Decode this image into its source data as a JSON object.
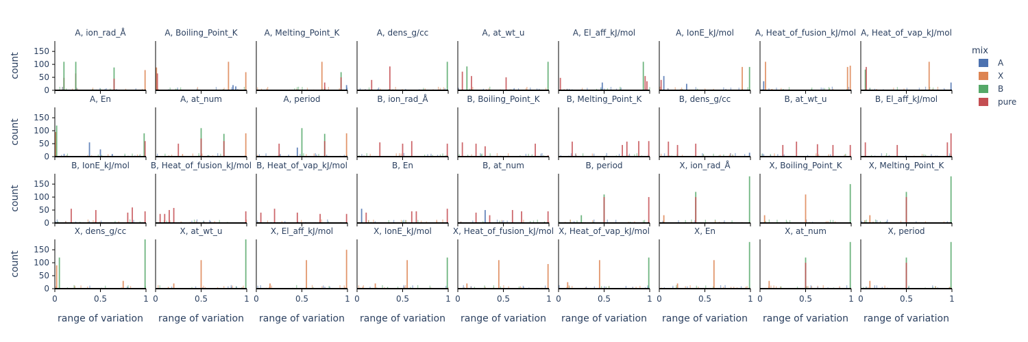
{
  "chart_data": {
    "type": "histogram",
    "layout": "facet grid, 4 rows x 9 columns, shared axes",
    "xlabel": "range of variation",
    "ylabel": "count",
    "xlim": [
      0,
      1
    ],
    "ylim": [
      0,
      190
    ],
    "xticks": [
      "0",
      "0.5",
      "1"
    ],
    "yticks": [
      "0",
      "50",
      "100",
      "150"
    ],
    "legend": {
      "title": "mix",
      "placement": "right",
      "entries": [
        {
          "name": "A",
          "color": "#4c72b0"
        },
        {
          "name": "X",
          "color": "#dd8452"
        },
        {
          "name": "B",
          "color": "#55a868"
        },
        {
          "name": "pure",
          "color": "#c44e52"
        }
      ]
    },
    "facets": [
      {
        "title": "A, ion_rad_Å",
        "spikes": [
          [
            0.1,
            48,
            "pure"
          ],
          [
            0.1,
            110,
            "B"
          ],
          [
            0.23,
            65,
            "pure"
          ],
          [
            0.23,
            110,
            "B"
          ],
          [
            0.65,
            88,
            "B"
          ],
          [
            0.65,
            45,
            "pure"
          ],
          [
            0.99,
            78,
            "X"
          ]
        ]
      },
      {
        "title": "A, Boiling_Point_K",
        "spikes": [
          [
            0.01,
            88,
            "X"
          ],
          [
            0.02,
            65,
            "pure"
          ],
          [
            0.8,
            110,
            "X"
          ],
          [
            0.85,
            20,
            "A"
          ],
          [
            0.88,
            15,
            "A"
          ],
          [
            0.99,
            70,
            "X"
          ]
        ]
      },
      {
        "title": "A, Melting_Point_K",
        "spikes": [
          [
            0.72,
            110,
            "X"
          ],
          [
            0.75,
            30,
            "pure"
          ],
          [
            0.93,
            70,
            "B"
          ],
          [
            0.93,
            50,
            "pure"
          ],
          [
            0.99,
            20,
            "A"
          ]
        ]
      },
      {
        "title": "A, dens_g/cc",
        "spikes": [
          [
            0.16,
            40,
            "pure"
          ],
          [
            0.36,
            92,
            "pure"
          ],
          [
            0.99,
            110,
            "B"
          ]
        ]
      },
      {
        "title": "A, at_wt_u",
        "spikes": [
          [
            0.05,
            72,
            "pure"
          ],
          [
            0.1,
            92,
            "B"
          ],
          [
            0.15,
            55,
            "pure"
          ],
          [
            0.53,
            50,
            "pure"
          ],
          [
            0.99,
            110,
            "B"
          ]
        ]
      },
      {
        "title": "A, El_aff_kJ/mol",
        "spikes": [
          [
            0.02,
            48,
            "pure"
          ],
          [
            0.48,
            30,
            "A"
          ],
          [
            0.93,
            110,
            "B"
          ],
          [
            0.95,
            55,
            "pure"
          ],
          [
            0.97,
            35,
            "pure"
          ]
        ]
      },
      {
        "title": "A, IonE_kJ/mol",
        "spikes": [
          [
            0.02,
            40,
            "pure"
          ],
          [
            0.05,
            55,
            "A"
          ],
          [
            0.3,
            25,
            "A"
          ],
          [
            0.91,
            90,
            "X"
          ],
          [
            0.99,
            90,
            "B"
          ]
        ]
      },
      {
        "title": "A, Heat_of_fusion_kJ/mol",
        "spikes": [
          [
            0.04,
            35,
            "A"
          ],
          [
            0.06,
            110,
            "X"
          ],
          [
            0.96,
            90,
            "X"
          ],
          [
            0.99,
            95,
            "X"
          ]
        ]
      },
      {
        "title": "A, Heat_of_vap_kJ/mol",
        "spikes": [
          [
            0.05,
            80,
            "B"
          ],
          [
            0.06,
            90,
            "pure"
          ],
          [
            0.75,
            110,
            "X"
          ],
          [
            0.99,
            30,
            "A"
          ]
        ]
      },
      {
        "title": "A, En",
        "spikes": [
          [
            0.01,
            95,
            "X"
          ],
          [
            0.02,
            120,
            "B"
          ],
          [
            0.38,
            55,
            "A"
          ],
          [
            0.5,
            28,
            "A"
          ],
          [
            0.63,
            10,
            "A"
          ],
          [
            0.98,
            90,
            "B"
          ],
          [
            0.99,
            60,
            "pure"
          ]
        ]
      },
      {
        "title": "A, at_num",
        "spikes": [
          [
            0.25,
            50,
            "pure"
          ],
          [
            0.5,
            110,
            "B"
          ],
          [
            0.5,
            70,
            "pure"
          ],
          [
            0.75,
            88,
            "B"
          ],
          [
            0.75,
            60,
            "pure"
          ],
          [
            0.99,
            90,
            "X"
          ]
        ]
      },
      {
        "title": "A, period",
        "spikes": [
          [
            0.25,
            50,
            "pure"
          ],
          [
            0.45,
            35,
            "A"
          ],
          [
            0.5,
            110,
            "B"
          ],
          [
            0.75,
            88,
            "B"
          ],
          [
            0.75,
            60,
            "pure"
          ],
          [
            0.99,
            90,
            "X"
          ]
        ]
      },
      {
        "title": "B, ion_rad_Å",
        "spikes": [
          [
            0.25,
            55,
            "pure"
          ],
          [
            0.5,
            50,
            "pure"
          ],
          [
            0.6,
            60,
            "pure"
          ],
          [
            0.99,
            50,
            "pure"
          ]
        ]
      },
      {
        "title": "B, Boiling_Point_K",
        "spikes": [
          [
            0.05,
            55,
            "pure"
          ],
          [
            0.2,
            50,
            "pure"
          ],
          [
            0.3,
            40,
            "pure"
          ],
          [
            0.85,
            50,
            "pure"
          ],
          [
            0.99,
            5,
            "pure"
          ]
        ]
      },
      {
        "title": "B, Melting_Point_K",
        "spikes": [
          [
            0.15,
            58,
            "pure"
          ],
          [
            0.7,
            45,
            "pure"
          ],
          [
            0.75,
            58,
            "pure"
          ],
          [
            0.88,
            60,
            "pure"
          ],
          [
            0.99,
            60,
            "pure"
          ]
        ]
      },
      {
        "title": "B, dens_g/cc",
        "spikes": [
          [
            0.1,
            58,
            "pure"
          ],
          [
            0.2,
            45,
            "pure"
          ],
          [
            0.4,
            50,
            "pure"
          ],
          [
            0.99,
            15,
            "A"
          ]
        ]
      },
      {
        "title": "B, at_wt_u",
        "spikes": [
          [
            0.25,
            45,
            "pure"
          ],
          [
            0.4,
            58,
            "pure"
          ],
          [
            0.63,
            48,
            "pure"
          ],
          [
            0.8,
            45,
            "pure"
          ],
          [
            0.99,
            45,
            "pure"
          ]
        ]
      },
      {
        "title": "B, El_aff_kJ/mol",
        "spikes": [
          [
            0.05,
            55,
            "pure"
          ],
          [
            0.4,
            45,
            "pure"
          ],
          [
            0.95,
            55,
            "pure"
          ],
          [
            0.99,
            90,
            "pure"
          ]
        ]
      },
      {
        "title": "B, IonE_kJ/mol",
        "spikes": [
          [
            0.18,
            55,
            "pure"
          ],
          [
            0.45,
            50,
            "pure"
          ],
          [
            0.8,
            40,
            "pure"
          ],
          [
            0.85,
            60,
            "pure"
          ],
          [
            0.99,
            45,
            "pure"
          ]
        ]
      },
      {
        "title": "B, Heat_of_fusion_kJ/mol",
        "spikes": [
          [
            0.05,
            35,
            "pure"
          ],
          [
            0.1,
            35,
            "pure"
          ],
          [
            0.15,
            50,
            "pure"
          ],
          [
            0.2,
            58,
            "pure"
          ],
          [
            0.99,
            45,
            "pure"
          ]
        ]
      },
      {
        "title": "B, Heat_of_vap_kJ/mol",
        "spikes": [
          [
            0.05,
            40,
            "pure"
          ],
          [
            0.2,
            55,
            "pure"
          ],
          [
            0.45,
            40,
            "pure"
          ],
          [
            0.7,
            35,
            "pure"
          ],
          [
            0.99,
            35,
            "pure"
          ]
        ]
      },
      {
        "title": "B, En",
        "spikes": [
          [
            0.05,
            55,
            "A"
          ],
          [
            0.1,
            40,
            "pure"
          ],
          [
            0.6,
            45,
            "pure"
          ],
          [
            0.65,
            45,
            "pure"
          ],
          [
            0.99,
            55,
            "pure"
          ]
        ]
      },
      {
        "title": "B, at_num",
        "spikes": [
          [
            0.2,
            40,
            "pure"
          ],
          [
            0.3,
            50,
            "A"
          ],
          [
            0.35,
            30,
            "pure"
          ],
          [
            0.6,
            50,
            "pure"
          ],
          [
            0.7,
            45,
            "pure"
          ],
          [
            0.99,
            45,
            "pure"
          ]
        ]
      },
      {
        "title": "B, period",
        "spikes": [
          [
            0.25,
            30,
            "B"
          ],
          [
            0.5,
            110,
            "B"
          ],
          [
            0.5,
            100,
            "pure"
          ],
          [
            0.99,
            100,
            "pure"
          ]
        ]
      },
      {
        "title": "X, ion_rad_Å",
        "spikes": [
          [
            0.05,
            30,
            "X"
          ],
          [
            0.4,
            120,
            "B"
          ],
          [
            0.4,
            100,
            "pure"
          ],
          [
            0.99,
            180,
            "B"
          ]
        ]
      },
      {
        "title": "X, Boiling_Point_K",
        "spikes": [
          [
            0.05,
            30,
            "X"
          ],
          [
            0.5,
            110,
            "X"
          ],
          [
            0.99,
            150,
            "B"
          ]
        ]
      },
      {
        "title": "X, Melting_Point_K",
        "spikes": [
          [
            0.1,
            30,
            "X"
          ],
          [
            0.5,
            120,
            "B"
          ],
          [
            0.5,
            100,
            "pure"
          ],
          [
            0.99,
            180,
            "B"
          ]
        ]
      },
      {
        "title": "X, dens_g/cc",
        "spikes": [
          [
            0.02,
            90,
            "X"
          ],
          [
            0.05,
            120,
            "B"
          ],
          [
            0.75,
            30,
            "X"
          ],
          [
            0.99,
            190,
            "B"
          ]
        ]
      },
      {
        "title": "X, at_wt_u",
        "spikes": [
          [
            0.2,
            20,
            "X"
          ],
          [
            0.5,
            110,
            "X"
          ],
          [
            0.99,
            190,
            "B"
          ]
        ]
      },
      {
        "title": "X, El_aff_kJ/mol",
        "spikes": [
          [
            0.15,
            20,
            "X"
          ],
          [
            0.55,
            110,
            "X"
          ],
          [
            0.99,
            150,
            "X"
          ]
        ]
      },
      {
        "title": "X, IonE_kJ/mol",
        "spikes": [
          [
            0.2,
            20,
            "X"
          ],
          [
            0.55,
            110,
            "X"
          ],
          [
            0.99,
            120,
            "B"
          ]
        ]
      },
      {
        "title": "X, Heat_of_fusion_kJ/mol",
        "spikes": [
          [
            0.1,
            20,
            "X"
          ],
          [
            0.45,
            110,
            "X"
          ],
          [
            0.99,
            95,
            "X"
          ]
        ]
      },
      {
        "title": "X, Heat_of_vap_kJ/mol",
        "spikes": [
          [
            0.1,
            25,
            "X"
          ],
          [
            0.45,
            110,
            "X"
          ],
          [
            0.99,
            120,
            "B"
          ]
        ]
      },
      {
        "title": "X, En",
        "spikes": [
          [
            0.2,
            20,
            "X"
          ],
          [
            0.6,
            110,
            "X"
          ],
          [
            0.99,
            180,
            "B"
          ]
        ]
      },
      {
        "title": "X, at_num",
        "spikes": [
          [
            0.1,
            30,
            "X"
          ],
          [
            0.5,
            120,
            "B"
          ],
          [
            0.5,
            100,
            "pure"
          ],
          [
            0.99,
            180,
            "B"
          ]
        ]
      },
      {
        "title": "X, period",
        "spikes": [
          [
            0.1,
            30,
            "X"
          ],
          [
            0.5,
            120,
            "B"
          ],
          [
            0.5,
            100,
            "pure"
          ],
          [
            0.99,
            180,
            "B"
          ]
        ]
      }
    ]
  }
}
